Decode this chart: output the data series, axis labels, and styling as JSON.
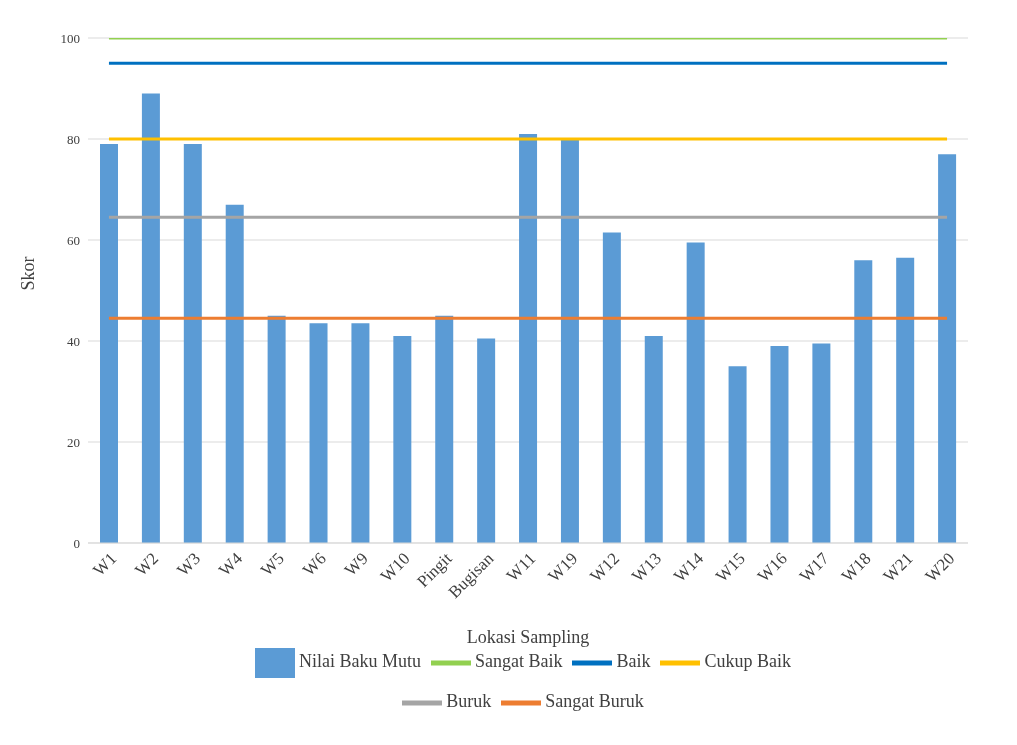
{
  "chart_data": {
    "type": "bar",
    "xlabel": "Lokasi Sampling",
    "ylabel": "Skor",
    "categories": [
      "W1",
      "W2",
      "W3",
      "W4",
      "W5",
      "W6",
      "W9",
      "W10",
      "Pingit",
      "Bugisan",
      "W11",
      "W19",
      "W12",
      "W13",
      "W14",
      "W15",
      "W16",
      "W17",
      "W18",
      "W21",
      "W20"
    ],
    "series": [
      {
        "name": "Nilai Baku Mutu",
        "color": "#5b9bd5",
        "values": [
          79,
          89,
          79,
          67,
          45,
          43.5,
          43.5,
          41,
          45,
          40.5,
          81,
          80,
          61.5,
          41,
          59.5,
          35,
          39,
          39.5,
          56,
          56.5,
          77
        ]
      },
      {
        "name": "Sangat Baik",
        "type": "line",
        "color": "#92d050",
        "values": [
          100,
          100,
          100,
          100,
          100,
          100,
          100,
          100,
          100,
          100,
          100,
          100,
          100,
          100,
          100,
          100,
          100,
          100,
          100,
          100,
          100
        ]
      },
      {
        "name": "Baik",
        "type": "line",
        "color": "#0070c0",
        "values": [
          95,
          95,
          95,
          95,
          95,
          95,
          95,
          95,
          95,
          95,
          95,
          95,
          95,
          95,
          95,
          95,
          95,
          95,
          95,
          95,
          95
        ]
      },
      {
        "name": "Cukup Baik",
        "type": "line",
        "color": "#ffc000",
        "values": [
          80,
          80,
          80,
          80,
          80,
          80,
          80,
          80,
          80,
          80,
          80,
          80,
          80,
          80,
          80,
          80,
          80,
          80,
          80,
          80,
          80
        ]
      },
      {
        "name": "Buruk",
        "type": "line",
        "color": "#a5a5a5",
        "values": [
          64.5,
          64.5,
          64.5,
          64.5,
          64.5,
          64.5,
          64.5,
          64.5,
          64.5,
          64.5,
          64.5,
          64.5,
          64.5,
          64.5,
          64.5,
          64.5,
          64.5,
          64.5,
          64.5,
          64.5,
          64.5
        ]
      },
      {
        "name": "Sangat Buruk",
        "type": "line",
        "color": "#ed7d31",
        "values": [
          44.5,
          44.5,
          44.5,
          44.5,
          44.5,
          44.5,
          44.5,
          44.5,
          44.5,
          44.5,
          44.5,
          44.5,
          44.5,
          44.5,
          44.5,
          44.5,
          44.5,
          44.5,
          44.5,
          44.5,
          44.5
        ]
      }
    ],
    "ylim": [
      0,
      100
    ],
    "yticks": [
      0,
      20,
      40,
      60,
      80,
      100
    ],
    "grid": "y",
    "legend": "bottom",
    "marker": "none",
    "line_style": "solid"
  }
}
